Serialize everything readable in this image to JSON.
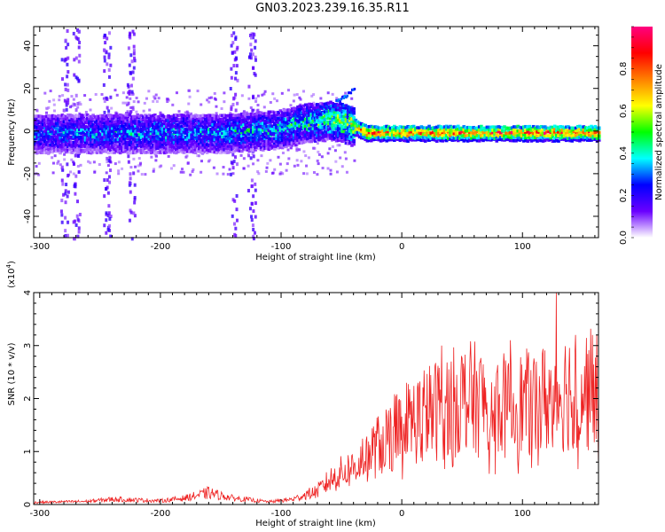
{
  "title": "GN03.2023.239.16.35.R11",
  "chart_data": [
    {
      "type": "heatmap",
      "xlabel": "Height of straight line (km)",
      "ylabel": "Frequency (Hz)",
      "xlim": [
        -305,
        163
      ],
      "ylim": [
        -50,
        49
      ],
      "xticks": [
        "-300",
        "-200",
        "-100",
        "0",
        "100"
      ],
      "yticks": [
        "-40",
        "-20",
        "0",
        "20",
        "40"
      ],
      "colorbar": {
        "label": "Normalized spectral amplitude",
        "range": [
          0.0,
          1.0
        ],
        "ticks": [
          "0.0",
          "0.2",
          "0.4",
          "0.6",
          "0.8"
        ],
        "colormap": [
          "#ffffff",
          "#6a00ff",
          "#0000ff",
          "#00ffff",
          "#00ff00",
          "#ffff00",
          "#ff8000",
          "#ff0000",
          "#ff0080"
        ]
      },
      "ridge": {
        "description_points_x": [
          -305,
          -200,
          -150,
          -100,
          -80,
          -60,
          -50,
          -40,
          -30,
          0,
          50,
          100,
          163
        ],
        "center_freq_hz": [
          0,
          0,
          0,
          2,
          5,
          6,
          5,
          3,
          0,
          0,
          0,
          0,
          0
        ],
        "peak_amplitude": [
          0.35,
          0.4,
          0.4,
          0.45,
          0.5,
          0.6,
          0.7,
          0.75,
          0.9,
          0.9,
          0.9,
          0.95,
          0.9
        ]
      },
      "vertical_streaks_x": [
        -280,
        -270,
        -245,
        -225,
        -140,
        -125
      ]
    },
    {
      "type": "line",
      "xlabel": "Height of straight line (km)",
      "ylabel": "SNR (10 * v/v)",
      "multiplier_label": "(x10",
      "multiplier_exp": "4",
      "multiplier_close": ")",
      "xlim": [
        -305,
        163
      ],
      "ylim": [
        0,
        4
      ],
      "xticks": [
        "-300",
        "-200",
        "-100",
        "0",
        "100"
      ],
      "yticks": [
        "0",
        "1",
        "2",
        "3",
        "4"
      ],
      "color": "#ee2222",
      "envelope": {
        "x": [
          -305,
          -260,
          -240,
          -200,
          -180,
          -160,
          -140,
          -110,
          -90,
          -80,
          -70,
          -60,
          -50,
          -40,
          -30,
          -20,
          -10,
          0,
          10,
          20,
          30,
          40,
          50,
          60,
          70,
          80,
          90,
          100,
          110,
          120,
          130,
          140,
          150,
          163
        ],
        "y": [
          0.04,
          0.06,
          0.1,
          0.07,
          0.12,
          0.22,
          0.12,
          0.05,
          0.1,
          0.18,
          0.25,
          0.45,
          0.6,
          0.7,
          0.9,
          1.1,
          1.3,
          1.5,
          1.6,
          1.7,
          1.8,
          1.9,
          2.0,
          2.0,
          1.9,
          1.9,
          1.8,
          1.9,
          1.9,
          2.0,
          2.1,
          2.2,
          2.2,
          2.1
        ],
        "peaks": [
          [
            33,
            3.0
          ],
          [
            90,
            3.1
          ],
          [
            128,
            4.0
          ],
          [
            144,
            3.2
          ],
          [
            158,
            3.2
          ]
        ]
      }
    }
  ]
}
